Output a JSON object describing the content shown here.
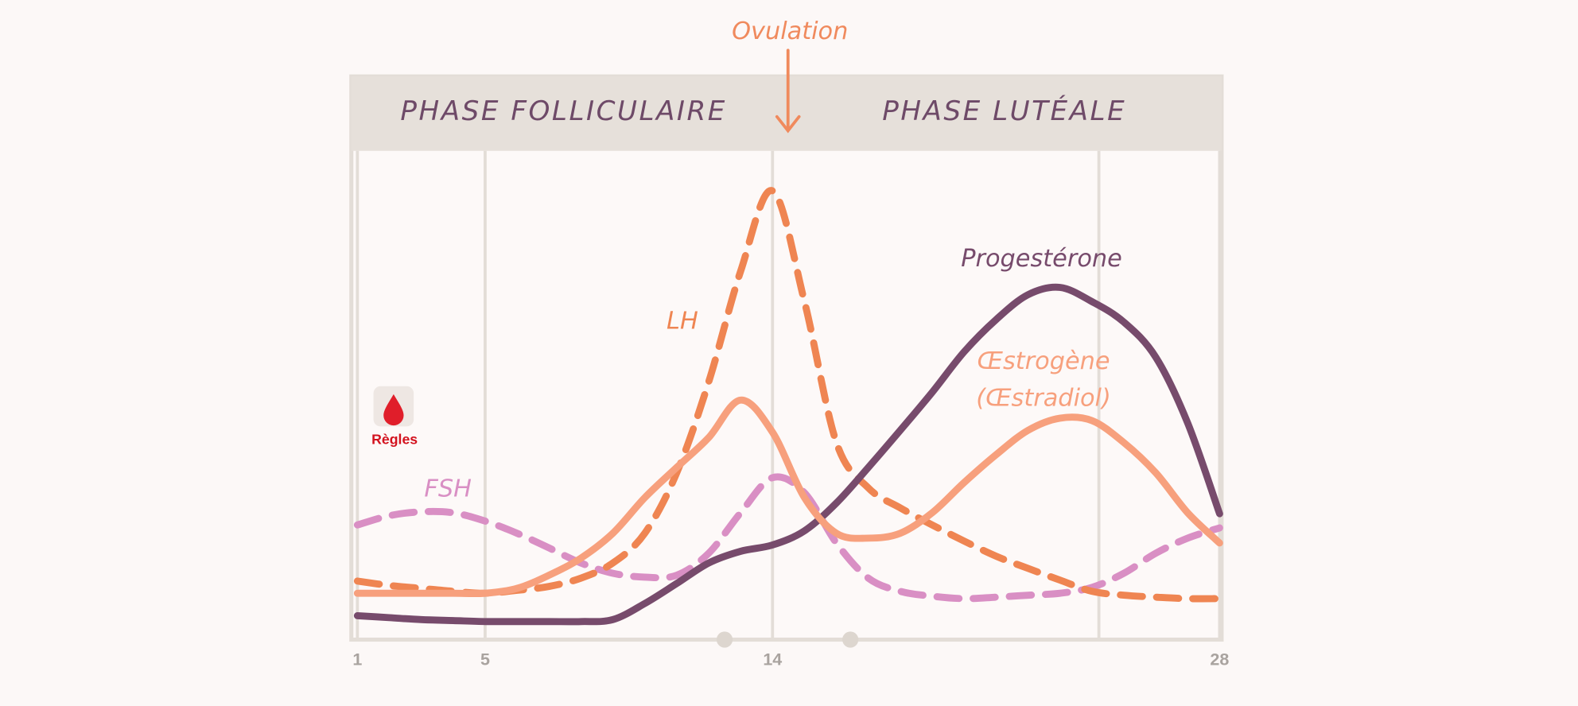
{
  "chart_data": {
    "type": "line",
    "ovulation_label": "Ovulation",
    "phases": [
      "PHASE FOLLICULAIRE",
      "PHASE LUTÉALE"
    ],
    "period_label": "Règles",
    "estrogen_note": "(Œstradiol)",
    "x": [
      1,
      2,
      3,
      4,
      5,
      6,
      7,
      8,
      9,
      10,
      11,
      12,
      13,
      14,
      15,
      16,
      17,
      18,
      19,
      20,
      21,
      22,
      23,
      24,
      25,
      26,
      27,
      28
    ],
    "xlim": [
      1,
      28
    ],
    "xticks": [
      1,
      5,
      14,
      28
    ],
    "ylim": [
      0,
      100
    ],
    "grid": true,
    "series": [
      {
        "name": "FSH",
        "color": "#d98fc4",
        "dashed": true,
        "values": [
          23.3,
          25.2,
          26.0,
          25.8,
          24.1,
          21.6,
          18.6,
          15.5,
          13.4,
          12.6,
          13.0,
          17.5,
          25.8,
          33.0,
          29.9,
          19.6,
          12.4,
          9.7,
          8.7,
          8.2,
          8.5,
          8.9,
          9.3,
          10.5,
          13.4,
          17.5,
          20.6,
          22.7
        ]
      },
      {
        "name": "LH",
        "color": "#ef8552",
        "dashed": true,
        "values": [
          11.8,
          10.9,
          10.3,
          9.7,
          9.3,
          9.9,
          10.7,
          12.4,
          15.5,
          21.6,
          34.0,
          52.6,
          75.3,
          91.8,
          69.1,
          40.2,
          30.9,
          26.8,
          23.3,
          20.0,
          16.9,
          14.4,
          12.0,
          9.7,
          8.9,
          8.5,
          8.2,
          8.2
        ]
      },
      {
        "name": "Progestérone",
        "color": "#774b6c",
        "dashed": false,
        "values": [
          4.7,
          4.3,
          3.9,
          3.7,
          3.5,
          3.5,
          3.5,
          3.5,
          3.9,
          7.2,
          11.3,
          15.5,
          17.9,
          19.2,
          22.1,
          27.8,
          35.1,
          42.7,
          50.5,
          58.8,
          65.4,
          70.5,
          72.0,
          69.1,
          64.9,
          57.7,
          44.2,
          25.6
        ]
      },
      {
        "name": "Œstrogène",
        "color": "#f7a07d",
        "dashed": false,
        "values": [
          9.3,
          9.3,
          9.3,
          9.3,
          9.3,
          10.3,
          13.0,
          16.5,
          21.6,
          28.9,
          35.1,
          41.2,
          48.9,
          42.3,
          28.9,
          21.6,
          20.6,
          21.6,
          25.8,
          32.0,
          37.7,
          42.7,
          45.2,
          44.7,
          40.2,
          34.0,
          25.8,
          19.6
        ]
      }
    ]
  }
}
